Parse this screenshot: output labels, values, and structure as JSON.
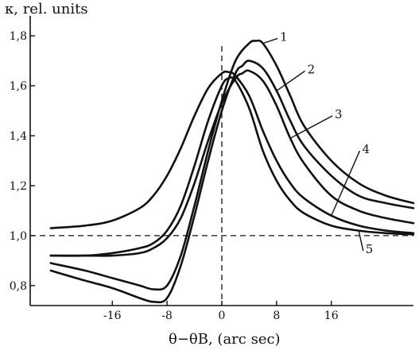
{
  "chart_data": {
    "type": "line",
    "ylabel": "κ, rel. units",
    "xlabel": "θ−θB, (arc sec)",
    "xlim": [
      -28,
      28
    ],
    "ylim": [
      0.72,
      1.88
    ],
    "x_ticks": [
      {
        "value": -16,
        "label": "-16"
      },
      {
        "value": -8,
        "label": "-8"
      },
      {
        "value": 0,
        "label": "0"
      },
      {
        "value": 8,
        "label": "8"
      },
      {
        "value": 16,
        "label": "16"
      }
    ],
    "y_ticks": [
      {
        "value": 0.8,
        "label": "0,8"
      },
      {
        "value": 1.0,
        "label": "1,0"
      },
      {
        "value": 1.2,
        "label": "1,2"
      },
      {
        "value": 1.4,
        "label": "1,4"
      },
      {
        "value": 1.6,
        "label": "1,6"
      },
      {
        "value": 1.8,
        "label": "1,8"
      }
    ],
    "reference_lines": {
      "horizontal_y": 1.0,
      "vertical_x": 0
    },
    "series": [
      {
        "name": "1",
        "label_point": [
          8.5,
          1.78
        ],
        "x": [
          -25,
          -20,
          -16,
          -12,
          -10,
          -8,
          -6,
          -4,
          -2,
          0,
          2,
          4,
          5,
          6,
          8,
          10,
          12,
          16,
          20,
          24,
          28
        ],
        "y": [
          0.89,
          0.86,
          0.83,
          0.8,
          0.785,
          0.8,
          0.92,
          1.12,
          1.34,
          1.54,
          1.7,
          1.77,
          1.78,
          1.77,
          1.68,
          1.56,
          1.44,
          1.3,
          1.21,
          1.16,
          1.13
        ]
      },
      {
        "name": "2",
        "label_point": [
          12.5,
          1.65
        ],
        "x": [
          -25,
          -20,
          -16,
          -12,
          -10,
          -8,
          -6,
          -4,
          -2,
          0,
          2,
          3,
          4,
          6,
          8,
          10,
          12,
          16,
          20,
          24,
          28
        ],
        "y": [
          0.86,
          0.82,
          0.79,
          0.75,
          0.735,
          0.75,
          0.88,
          1.08,
          1.3,
          1.5,
          1.65,
          1.68,
          1.7,
          1.67,
          1.58,
          1.46,
          1.36,
          1.24,
          1.16,
          1.13,
          1.11
        ]
      },
      {
        "name": "3",
        "label_point": [
          16.5,
          1.47
        ],
        "x": [
          -25,
          -20,
          -16,
          -12,
          -10,
          -8,
          -6,
          -4,
          -2,
          0,
          2,
          3,
          4,
          6,
          8,
          10,
          12,
          16,
          20,
          24,
          28
        ],
        "y": [
          0.92,
          0.92,
          0.92,
          0.93,
          0.95,
          0.99,
          1.07,
          1.21,
          1.38,
          1.53,
          1.63,
          1.65,
          1.66,
          1.62,
          1.52,
          1.39,
          1.29,
          1.16,
          1.1,
          1.07,
          1.05
        ]
      },
      {
        "name": "4",
        "label_point": [
          20.5,
          1.33
        ],
        "x": [
          -25,
          -20,
          -16,
          -12,
          -10,
          -8,
          -6,
          -4,
          -2,
          0,
          1,
          2,
          4,
          6,
          8,
          10,
          12,
          16,
          20,
          24,
          28
        ],
        "y": [
          1.03,
          1.04,
          1.06,
          1.11,
          1.16,
          1.24,
          1.35,
          1.48,
          1.59,
          1.65,
          1.655,
          1.64,
          1.56,
          1.42,
          1.3,
          1.21,
          1.15,
          1.08,
          1.04,
          1.02,
          1.01
        ]
      },
      {
        "name": "5",
        "label_point": [
          21,
          0.93
        ],
        "x": [
          -25,
          -20,
          -16,
          -12,
          -10,
          -8,
          -6,
          -4,
          -2,
          0,
          1,
          2,
          4,
          6,
          8,
          10,
          12,
          16,
          20,
          24,
          28
        ],
        "y": [
          0.92,
          0.92,
          0.93,
          0.95,
          0.97,
          1.02,
          1.12,
          1.28,
          1.46,
          1.6,
          1.63,
          1.62,
          1.51,
          1.34,
          1.22,
          1.14,
          1.09,
          1.04,
          1.02,
          1.01,
          1.005
        ]
      }
    ],
    "grid": false,
    "legend": "none"
  }
}
